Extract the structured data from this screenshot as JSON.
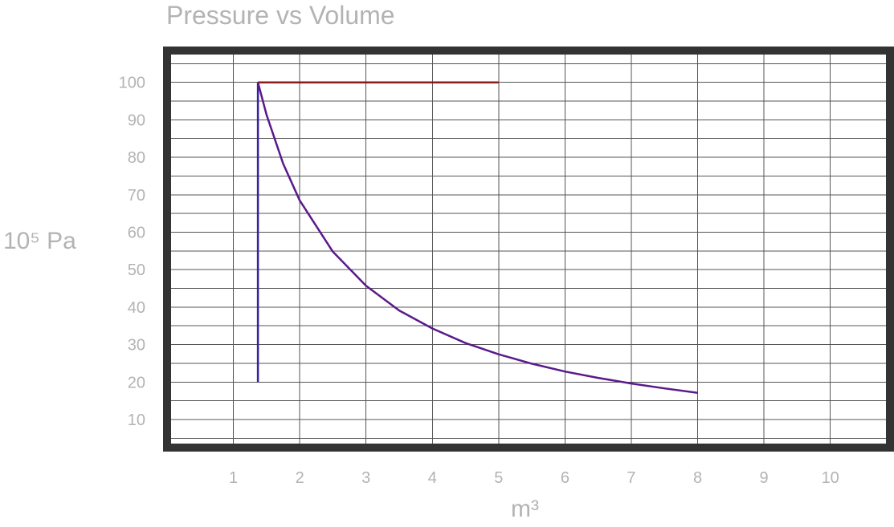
{
  "chart_data": {
    "type": "line",
    "title": "Pressure vs Volume",
    "xlabel": "m³",
    "ylabel": "10⁵ Pa",
    "xlim": [
      0,
      10.9
    ],
    "ylim": [
      2.5,
      108.5
    ],
    "x_ticks": [
      1,
      2,
      3,
      4,
      5,
      6,
      7,
      8,
      9,
      10
    ],
    "x_tick_labels": [
      "1",
      "2",
      "3",
      "4",
      "5",
      "6",
      "7",
      "8",
      "9",
      "10"
    ],
    "y_ticks": [
      10,
      20,
      30,
      40,
      50,
      60,
      70,
      80,
      90,
      100
    ],
    "y_tick_labels": [
      "10",
      "20",
      "30",
      "40",
      "50",
      "60",
      "70",
      "80",
      "90",
      "100"
    ],
    "grid": true,
    "legend": "none",
    "series": [
      {
        "color": "#3a1fa0",
        "points": [
          [
            1.37,
            20
          ],
          [
            1.37,
            100
          ]
        ]
      },
      {
        "color": "#8b1a1a",
        "points": [
          [
            1.37,
            100
          ],
          [
            5.0,
            100
          ]
        ]
      },
      {
        "color": "#5a1a8a",
        "points": [
          [
            1.37,
            100
          ],
          [
            1.5,
            91.3
          ],
          [
            1.75,
            78.3
          ],
          [
            2.0,
            68.5
          ],
          [
            2.5,
            54.8
          ],
          [
            3.0,
            45.7
          ],
          [
            3.5,
            39.1
          ],
          [
            4.0,
            34.3
          ],
          [
            4.5,
            30.4
          ],
          [
            5.0,
            27.4
          ],
          [
            5.5,
            24.9
          ],
          [
            6.0,
            22.8
          ],
          [
            6.5,
            21.1
          ],
          [
            7.0,
            19.6
          ],
          [
            7.5,
            18.3
          ],
          [
            8.0,
            17.1
          ]
        ]
      }
    ]
  }
}
